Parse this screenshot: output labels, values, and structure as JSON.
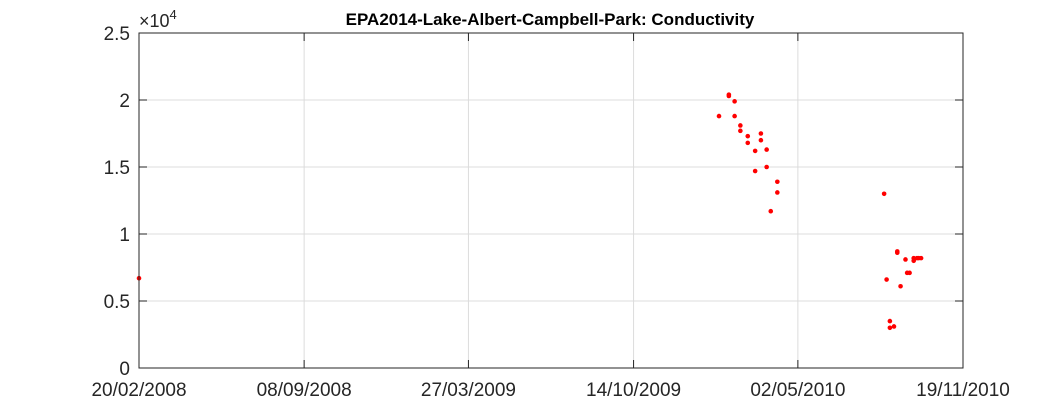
{
  "chart_data": {
    "type": "scatter",
    "title": "EPA2014-Lake-Albert-Campbell-Park: Conductivity",
    "xlabel": "",
    "ylabel": "",
    "y_exponent_label": {
      "base": "×10",
      "power": "4"
    },
    "xlim": [
      "2008-02-20",
      "2010-11-19"
    ],
    "ylim": [
      0,
      2.5
    ],
    "x_ticks": [
      "20/02/2008",
      "08/09/2008",
      "27/03/2009",
      "14/10/2009",
      "02/05/2010",
      "19/11/2010"
    ],
    "y_ticks": [
      "0",
      "0.5",
      "1",
      "1.5",
      "2",
      "2.5"
    ],
    "grid": true,
    "legend": "none",
    "marker_color": "#ff0000",
    "series": [
      {
        "x": [
          "2008-02-20",
          "2010-01-26",
          "2010-02-07",
          "2010-02-07",
          "2010-02-14",
          "2010-02-14",
          "2010-02-21",
          "2010-02-21",
          "2010-03-02",
          "2010-03-02",
          "2010-03-11",
          "2010-03-11",
          "2010-03-18",
          "2010-03-18",
          "2010-03-25",
          "2010-03-25",
          "2010-03-30",
          "2010-04-07",
          "2010-04-07",
          "2010-08-15",
          "2010-08-18",
          "2010-08-22",
          "2010-08-22",
          "2010-08-27",
          "2010-08-31",
          "2010-08-31",
          "2010-09-04",
          "2010-09-10",
          "2010-09-12",
          "2010-09-15",
          "2010-09-20",
          "2010-09-20",
          "2010-09-24",
          "2010-09-26",
          "2010-09-29"
        ],
        "values": [
          0.67,
          1.88,
          2.04,
          2.03,
          1.99,
          1.88,
          1.81,
          1.77,
          1.73,
          1.68,
          1.62,
          1.47,
          1.75,
          1.7,
          1.63,
          1.5,
          1.17,
          1.39,
          1.31,
          1.3,
          0.66,
          0.35,
          0.3,
          0.31,
          0.87,
          0.86,
          0.61,
          0.81,
          0.71,
          0.71,
          0.8,
          0.82,
          0.82,
          0.82,
          0.82
        ]
      }
    ]
  }
}
